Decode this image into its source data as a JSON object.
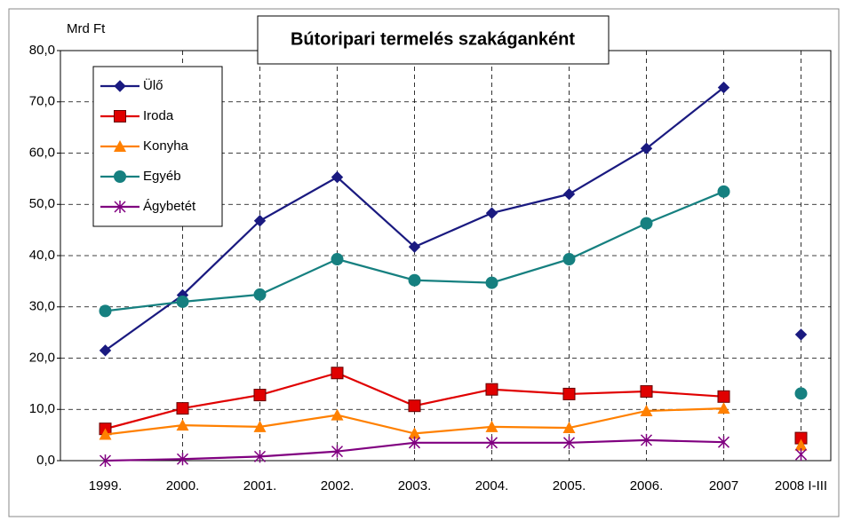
{
  "chart_data": {
    "type": "line",
    "title": "Bútoripari termelés szakáganként",
    "y_label": "Mrd Ft",
    "categories": [
      "1999.",
      "2000.",
      "2001.",
      "2002.",
      "2003.",
      "2004.",
      "2005.",
      "2006.",
      "2007",
      "2008 I-III"
    ],
    "series": [
      {
        "name": "Ülő",
        "color": "#1a1a80",
        "marker": "diamond",
        "values": [
          21.5,
          32.3,
          46.8,
          55.3,
          41.7,
          48.3,
          52.0,
          60.9,
          72.8,
          24.6
        ]
      },
      {
        "name": "Iroda",
        "color": "#e00000",
        "marker": "square",
        "values": [
          6.2,
          10.2,
          12.8,
          17.1,
          10.7,
          13.9,
          13.0,
          13.5,
          12.5,
          4.4
        ]
      },
      {
        "name": "Konyha",
        "color": "#ff8000",
        "marker": "triangle",
        "values": [
          5.1,
          6.9,
          6.6,
          8.9,
          5.3,
          6.6,
          6.4,
          9.7,
          10.2,
          3.0
        ]
      },
      {
        "name": "Egyéb",
        "color": "#168080",
        "marker": "circle",
        "values": [
          29.2,
          31.0,
          32.4,
          39.3,
          35.2,
          34.7,
          39.3,
          46.3,
          52.5,
          13.1
        ]
      },
      {
        "name": "Ágybetét",
        "color": "#800080",
        "marker": "asterisk",
        "values": [
          0.0,
          0.3,
          0.8,
          1.8,
          3.5,
          3.5,
          3.5,
          4.0,
          3.6,
          1.2
        ]
      }
    ],
    "ylim": [
      0,
      80
    ],
    "yticks": [
      {
        "value": 0,
        "label": "0,0"
      },
      {
        "value": 10,
        "label": "10,0"
      },
      {
        "value": 20,
        "label": "20,0"
      },
      {
        "value": 30,
        "label": "30,0"
      },
      {
        "value": 40,
        "label": "40,0"
      },
      {
        "value": 50,
        "label": "50,0"
      },
      {
        "value": 60,
        "label": "60,0"
      },
      {
        "value": 70,
        "label": "70,0"
      },
      {
        "value": 80,
        "label": "80,0"
      }
    ],
    "grid": true,
    "legend": "upper left"
  }
}
